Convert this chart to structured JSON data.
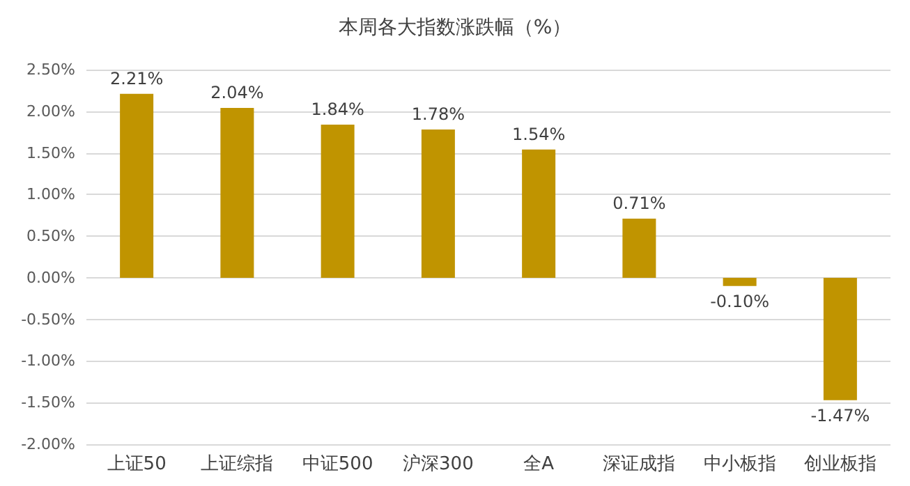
{
  "chart_data": {
    "type": "bar",
    "title": "本周各大指数涨跌幅（%）",
    "categories": [
      "上证50",
      "上证综指",
      "中证500",
      "沪深300",
      "全A",
      "深证成指",
      "中小板指",
      "创业板指"
    ],
    "values": [
      2.21,
      2.04,
      1.84,
      1.78,
      1.54,
      0.71,
      -0.1,
      -1.47
    ],
    "value_labels": [
      "2.21%",
      "2.04%",
      "1.84%",
      "1.78%",
      "1.54%",
      "0.71%",
      "-0.10%",
      "-1.47%"
    ],
    "color": "#c09400",
    "ylim": [
      -2,
      2.5
    ],
    "yticks": [
      {
        "value": -2,
        "label": "-2.00%"
      },
      {
        "value": -1.5,
        "label": "-1.50%"
      },
      {
        "value": -1,
        "label": "-1.00%"
      },
      {
        "value": -0.5,
        "label": "-0.50%"
      },
      {
        "value": 0,
        "label": "0.00%"
      },
      {
        "value": 0.5,
        "label": "0.50%"
      },
      {
        "value": 1,
        "label": "1.00%"
      },
      {
        "value": 1.5,
        "label": "1.50%"
      },
      {
        "value": 2,
        "label": "2.00%"
      },
      {
        "value": 2.5,
        "label": "2.50%"
      }
    ],
    "grid": "y"
  }
}
